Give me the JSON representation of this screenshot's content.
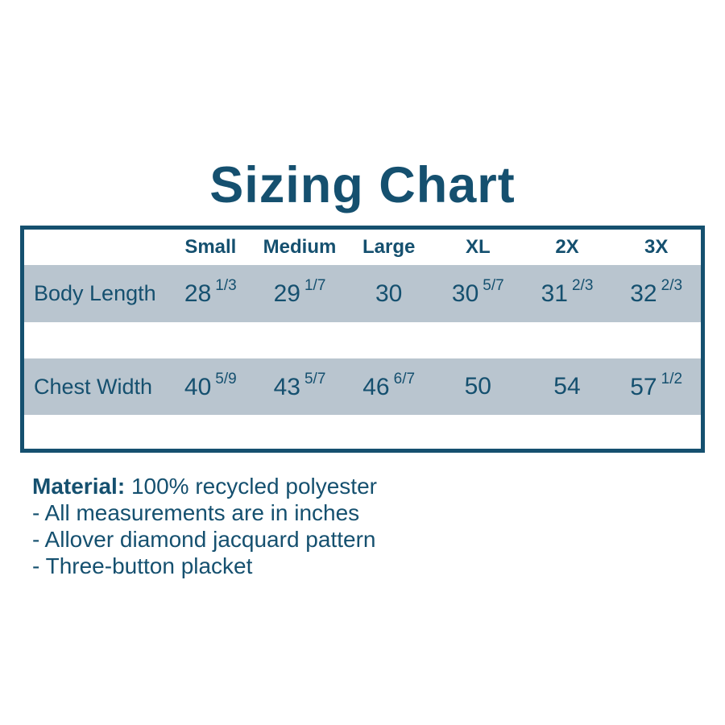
{
  "title": "Sizing Chart",
  "table": {
    "columns": [
      "Small",
      "Medium",
      "Large",
      "XL",
      "2X",
      "3X"
    ],
    "rows": [
      {
        "label": "Body Length",
        "values": [
          {
            "whole": "28",
            "frac": "1/3"
          },
          {
            "whole": "29",
            "frac": "1/7"
          },
          {
            "whole": "30",
            "frac": ""
          },
          {
            "whole": "30",
            "frac": "5/7"
          },
          {
            "whole": "31",
            "frac": "2/3"
          },
          {
            "whole": "32",
            "frac": "2/3"
          }
        ]
      },
      {
        "label": "Chest Width",
        "values": [
          {
            "whole": "40",
            "frac": "5/9"
          },
          {
            "whole": "43",
            "frac": "5/7"
          },
          {
            "whole": "46",
            "frac": "6/7"
          },
          {
            "whole": "50",
            "frac": ""
          },
          {
            "whole": "54",
            "frac": ""
          },
          {
            "whole": "57",
            "frac": "1/2"
          }
        ]
      }
    ]
  },
  "notes": {
    "material_label": "Material:",
    "material_value": "100% recycled polyester",
    "bullets": [
      "- All measurements are in inches",
      "- Allover diamond jacquard pattern",
      "- Three-button placket"
    ]
  },
  "colors": {
    "accent": "#15506F",
    "row_shade": "#B9C5CF",
    "background": "#FFFFFF"
  },
  "chart_data": {
    "type": "table",
    "title": "Sizing Chart",
    "columns": [
      "",
      "Small",
      "Medium",
      "Large",
      "XL",
      "2X",
      "3X"
    ],
    "rows": [
      [
        "Body Length",
        "28 1/3",
        "29 1/7",
        "30",
        "30 5/7",
        "31 2/3",
        "32 2/3"
      ],
      [
        "Chest Width",
        "40 5/9",
        "43 5/7",
        "46 6/7",
        "50",
        "54",
        "57 1/2"
      ]
    ],
    "notes": [
      "Material: 100% recycled polyester",
      "All measurements are in inches",
      "Allover diamond jacquard pattern",
      "Three-button placket"
    ]
  }
}
